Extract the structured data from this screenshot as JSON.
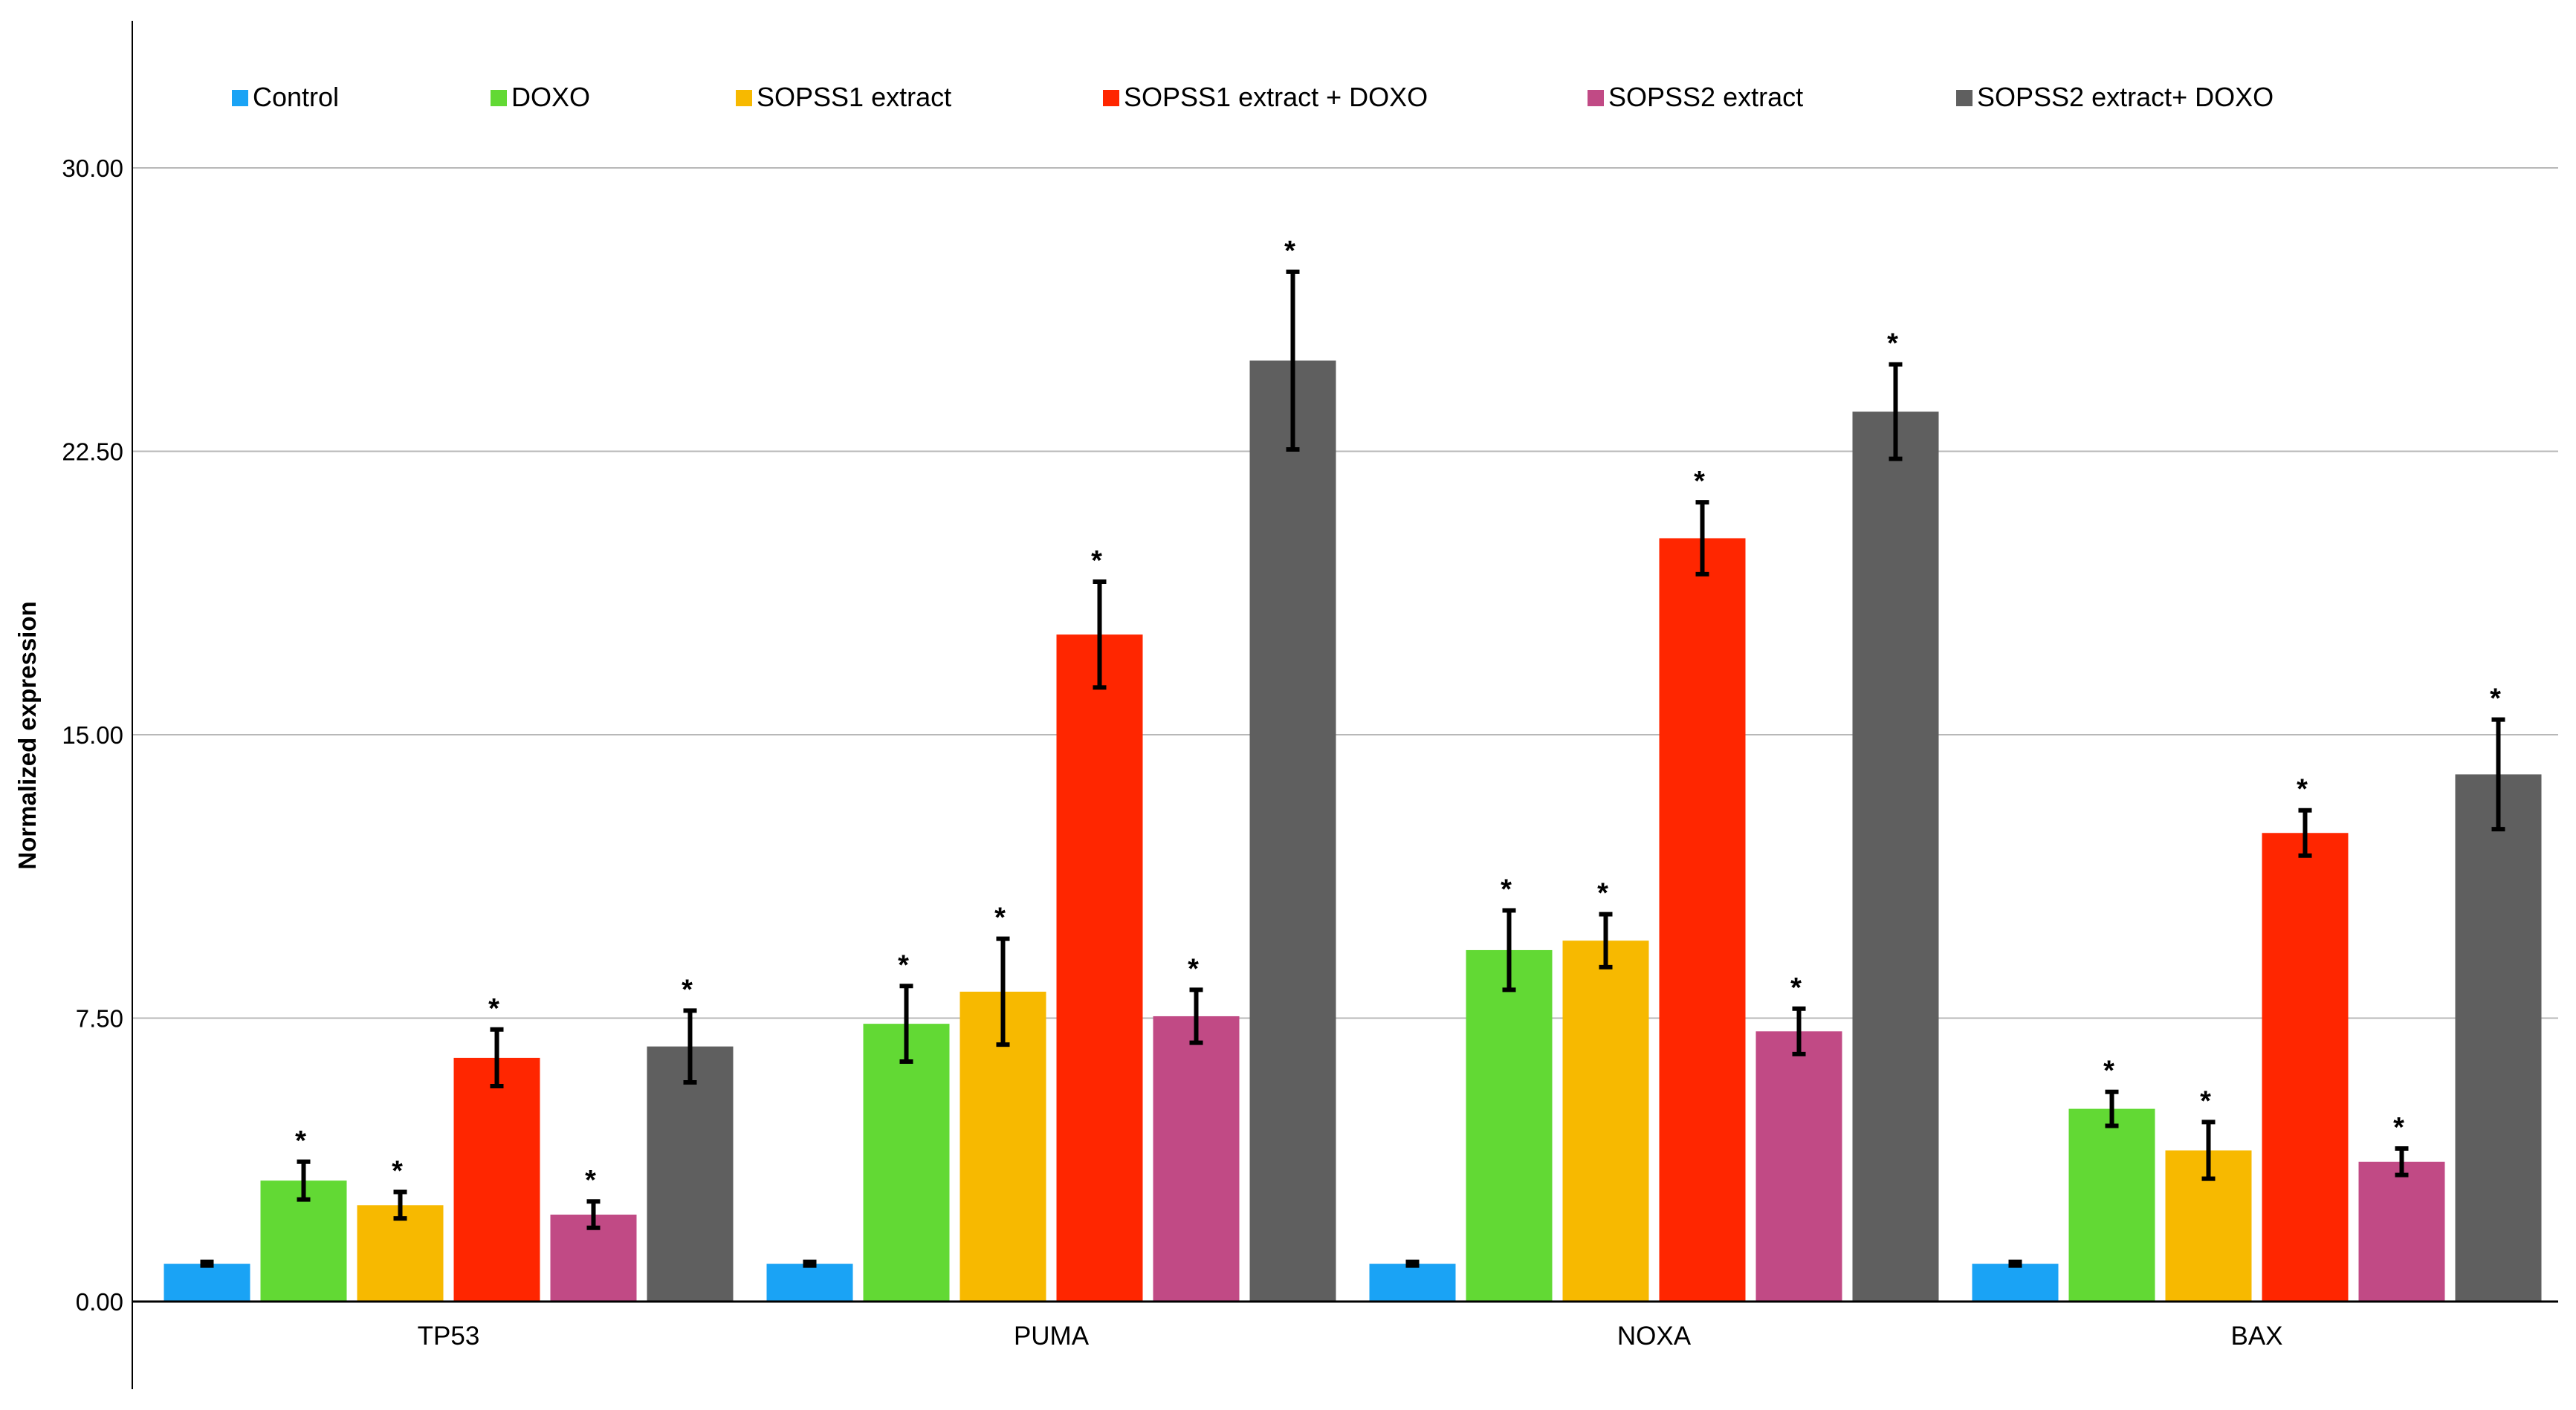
{
  "chart_data": {
    "type": "bar",
    "title": "",
    "xlabel": "",
    "ylabel": "Normalized expression",
    "ylim": [
      0,
      30
    ],
    "yticks": [
      0,
      7.5,
      15,
      22.5,
      30
    ],
    "ytick_labels": [
      "0.00",
      "7.50",
      "15.00",
      "22.50",
      "30.00"
    ],
    "grid": true,
    "legend_position": "top",
    "categories": [
      "TP53",
      "PUMA",
      "NOXA",
      "BAX"
    ],
    "series": [
      {
        "name": "Control",
        "color": "#1AA3F5",
        "values": [
          1.0,
          1.0,
          1.0,
          1.0
        ],
        "errors": [
          0.05,
          0.05,
          0.05,
          0.05
        ],
        "significant": [
          false,
          false,
          false,
          false
        ]
      },
      {
        "name": "DOXO",
        "color": "#62D934",
        "values": [
          3.2,
          7.35,
          9.3,
          5.1
        ],
        "errors": [
          0.5,
          1.0,
          1.05,
          0.45
        ],
        "significant": [
          true,
          true,
          true,
          true
        ]
      },
      {
        "name": "SOPSS1 extract",
        "color": "#F7B900",
        "values": [
          2.55,
          8.2,
          9.55,
          4.0
        ],
        "errors": [
          0.35,
          1.4,
          0.7,
          0.75
        ],
        "significant": [
          true,
          true,
          true,
          true
        ]
      },
      {
        "name": "SOPSS1 extract + DOXO",
        "color": "#FF2600",
        "values": [
          6.45,
          17.65,
          20.2,
          12.4
        ],
        "errors": [
          0.75,
          1.4,
          0.95,
          0.6
        ],
        "significant": [
          true,
          true,
          true,
          true
        ]
      },
      {
        "name": "SOPSS2 extract",
        "color": "#C14A85",
        "values": [
          2.3,
          7.55,
          7.15,
          3.7
        ],
        "errors": [
          0.35,
          0.7,
          0.6,
          0.35
        ],
        "significant": [
          true,
          true,
          true,
          true
        ]
      },
      {
        "name": "SOPSS2 extract+ DOXO",
        "color": "#5F5F5F",
        "values": [
          6.75,
          24.9,
          23.55,
          13.95
        ],
        "errors": [
          0.95,
          2.35,
          1.25,
          1.45
        ],
        "significant": [
          true,
          true,
          true,
          true
        ]
      }
    ],
    "significance_marker": "*",
    "axis_color": "#000000",
    "grid_color": "#B8B8B8",
    "errorbar_color": "#000000"
  }
}
